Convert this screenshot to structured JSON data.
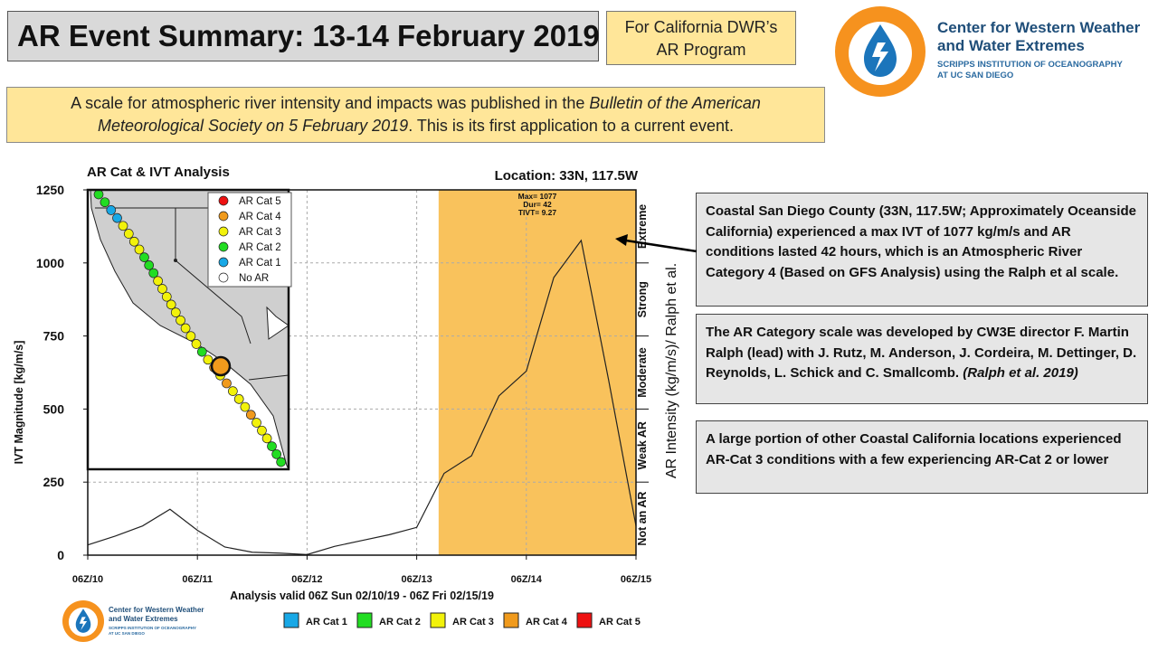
{
  "header": {
    "title": "AR Event Summary: 13-14 February 2019",
    "program_line1": "For California DWR’s",
    "program_line2": "AR Program"
  },
  "logo": {
    "line1": "Center for Western Weather",
    "line2": "and Water Extremes",
    "line3": "SCRIPPS INSTITUTION OF OCEANOGRAPHY",
    "line4": "AT UC SAN DIEGO"
  },
  "intro": {
    "line1_part1": "A scale for atmospheric river intensity and impacts was published in the ",
    "line1_italic": "Bulletin of the American",
    "line2_italic": "Meteorological Society on 5 February 2019",
    "line2_part2": ".  This is its first application to a current event."
  },
  "notes": {
    "note1": "Coastal San Diego County (33N, 117.5W; Approximately Oceanside California) experienced a max IVT of 1077 kg/m/s and AR conditions lasted 42 hours, which is an Atmospheric River Category 4 (Based on GFS Analysis) using the Ralph et al scale.",
    "note2_text": "The AR Category scale was developed by CW3E director  F. Martin Ralph (lead) with J. Rutz, M. Anderson, J. Cordeira, M. Dettinger,  D. Reynolds, L. Schick and C. Smallcomb. ",
    "note2_cite": "(Ralph et al. 2019)",
    "note3": "A large portion of other Coastal California locations experienced AR-Cat 3 conditions with a few experiencing AR-Cat 2 or lower"
  },
  "chart_data": {
    "type": "line",
    "title": "AR Cat & IVT Analysis",
    "location": "Location: 33N, 117.5W",
    "xlabel": "Analysis valid 06Z Sun 02/10/19 - 06Z Fri 02/15/19",
    "ylabel": "IVT Magnitude [kg/m/s]",
    "right_axis_label": "AR Intensity (kg/m/s)/ Ralph et al.",
    "x": [
      0,
      0.25,
      0.5,
      0.75,
      1,
      1.25,
      1.5,
      1.75,
      2,
      2.25,
      2.5,
      2.75,
      3,
      3.25,
      3.5,
      3.75,
      4,
      4.25,
      4.5,
      4.75,
      5
    ],
    "xlim": [
      0,
      5
    ],
    "x_tick_labels": [
      "06Z/10",
      "06Z/11",
      "06Z/12",
      "06Z/13",
      "06Z/14",
      "06Z/15"
    ],
    "ylim": [
      0,
      1250
    ],
    "y_ticks": [
      0,
      250,
      500,
      750,
      1000,
      1250
    ],
    "series": [
      {
        "name": "IVT",
        "values": [
          35,
          65,
          100,
          157,
          85,
          28,
          10,
          7,
          2,
          30,
          50,
          70,
          95,
          280,
          340,
          545,
          630,
          950,
          1077,
          600,
          100
        ]
      }
    ],
    "ar_conditions_window": [
      3.2,
      5
    ],
    "annotation": {
      "max": "Max= 1077",
      "dur": "Dur= 42",
      "tivt": "TIVT= 9.27"
    },
    "category_bands": [
      {
        "label": "Not an AR",
        "range": [
          0,
          250
        ]
      },
      {
        "label": "Weak AR",
        "range": [
          250,
          500
        ]
      },
      {
        "label": "Moderate",
        "range": [
          500,
          750
        ]
      },
      {
        "label": "Strong",
        "range": [
          750,
          1000
        ]
      },
      {
        "label": "Extreme",
        "range": [
          1000,
          1250
        ]
      }
    ],
    "inset_legend": [
      "AR Cat 5",
      "AR Cat 4",
      "AR Cat 3",
      "AR Cat 2",
      "AR Cat 1",
      "No AR"
    ],
    "bottom_legend": [
      "AR Cat 1",
      "AR Cat 2",
      "AR Cat 3",
      "AR Cat 4",
      "AR Cat 5"
    ],
    "map_point_categories": [
      2,
      2,
      1,
      1,
      3,
      3,
      3,
      3,
      2,
      2,
      2,
      3,
      3,
      3,
      3,
      3,
      3,
      3,
      3,
      3,
      2,
      3,
      4,
      3,
      4,
      3,
      3,
      3,
      4,
      3,
      3,
      3,
      2,
      2,
      2
    ]
  },
  "colors": {
    "ar_cat_1": "#18a8e6",
    "ar_cat_2": "#22dd22",
    "ar_cat_3": "#f2f20a",
    "ar_cat_4": "#f09a1c",
    "ar_cat_5": "#ee1111",
    "no_ar": "#ffffff",
    "ar_window": "#f9c25c",
    "logo_orange": "#f6921e",
    "logo_blue": "#1b75bb",
    "logo_text": "#1f4e79"
  }
}
